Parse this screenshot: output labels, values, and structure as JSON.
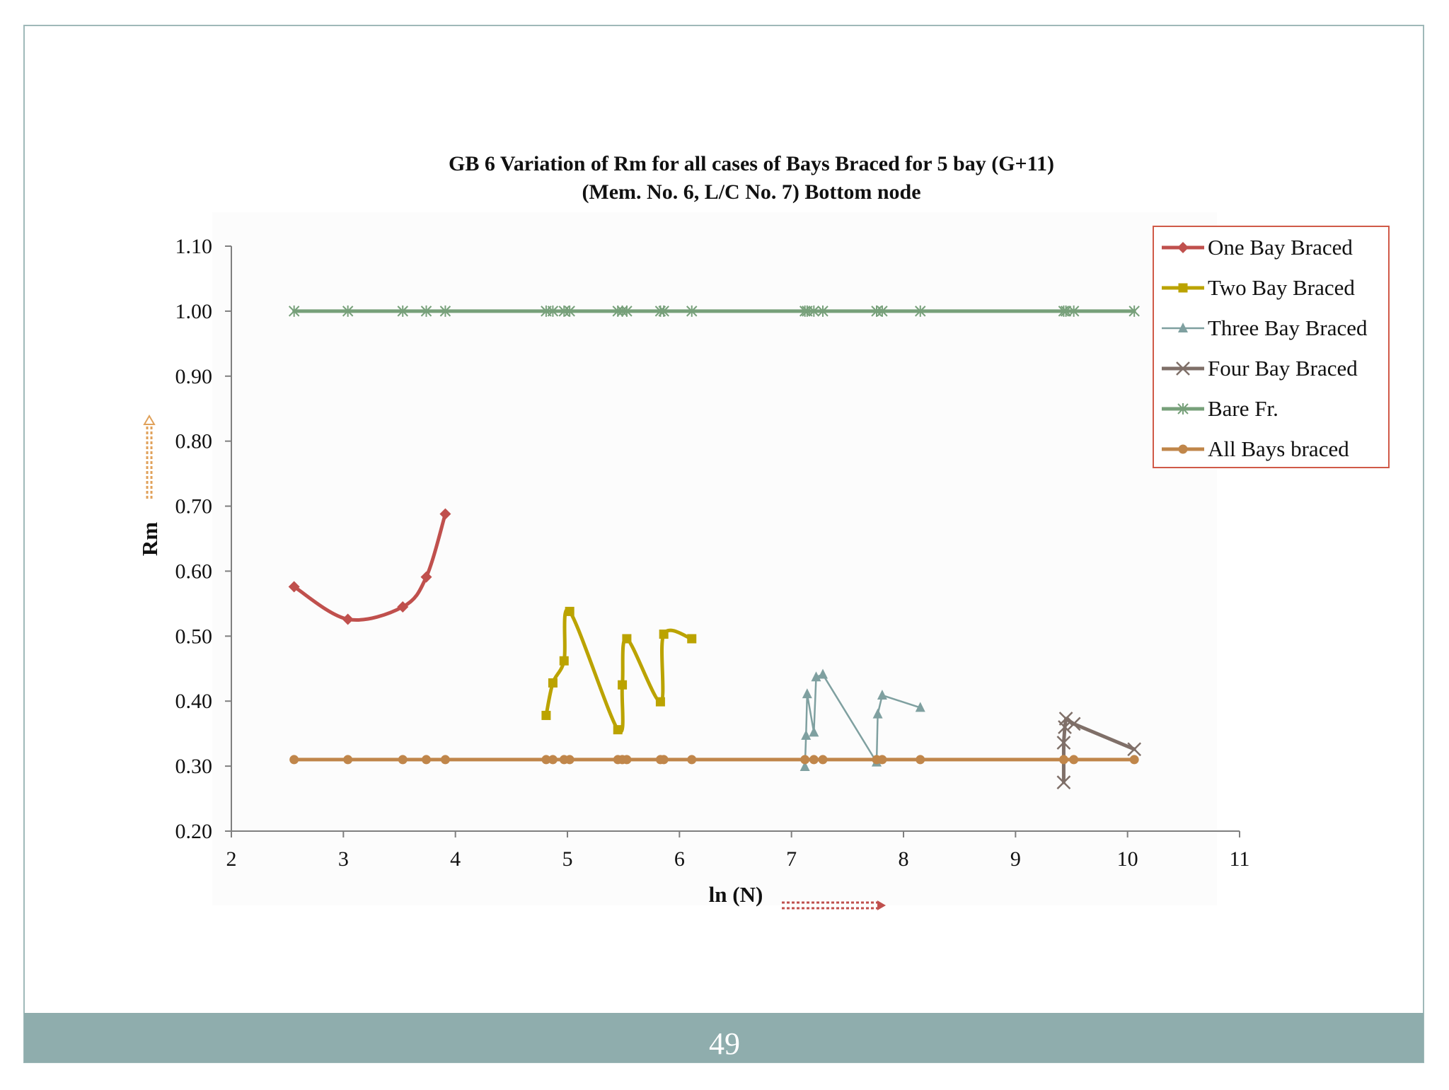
{
  "slide": {
    "page_number": "49"
  },
  "chart_data": {
    "type": "line",
    "title_lines": [
      "GB 6 Variation of Rm for all cases of Bays Braced for 5 bay  (G+11)",
      "(Mem. No. 6, L/C No. 7) Bottom node"
    ],
    "xlabel": "ln (N)",
    "ylabel": "Rm",
    "xlim": [
      2,
      11
    ],
    "ylim": [
      0.2,
      1.1
    ],
    "xticks": [
      2,
      3,
      4,
      5,
      6,
      7,
      8,
      9,
      10,
      11
    ],
    "yticks": [
      0.2,
      0.3,
      0.4,
      0.5,
      0.6,
      0.7,
      0.8,
      0.9,
      1.0,
      1.1
    ],
    "ytick_labels": [
      "0.20",
      "0.30",
      "0.40",
      "0.50",
      "0.60",
      "0.70",
      "0.80",
      "0.90",
      "1.00",
      "1.10"
    ],
    "legend_position": "top-right",
    "series": [
      {
        "name": "One Bay Braced",
        "color": "#C0504D",
        "marker": "diamond",
        "smooth": true,
        "points": [
          [
            2.56,
            0.576
          ],
          [
            3.04,
            0.526
          ],
          [
            3.53,
            0.545
          ],
          [
            3.74,
            0.591
          ],
          [
            3.91,
            0.688
          ]
        ]
      },
      {
        "name": "Two Bay Braced",
        "color": "#BBA300",
        "marker": "square",
        "smooth": true,
        "points": [
          [
            4.81,
            0.378
          ],
          [
            4.87,
            0.428
          ],
          [
            4.97,
            0.462
          ],
          [
            5.02,
            0.538
          ],
          [
            5.45,
            0.356
          ],
          [
            5.49,
            0.425
          ],
          [
            5.53,
            0.496
          ],
          [
            5.83,
            0.399
          ],
          [
            5.86,
            0.503
          ],
          [
            6.11,
            0.496
          ]
        ]
      },
      {
        "name": "Three Bay Braced",
        "color": "#7FA0A0",
        "marker": "triangle",
        "smooth": false,
        "points": [
          [
            7.12,
            0.299
          ],
          [
            7.13,
            0.347
          ],
          [
            7.14,
            0.411
          ],
          [
            7.2,
            0.352
          ],
          [
            7.22,
            0.437
          ],
          [
            7.28,
            0.441
          ],
          [
            7.76,
            0.306
          ],
          [
            7.77,
            0.38
          ],
          [
            7.81,
            0.409
          ],
          [
            8.15,
            0.39
          ]
        ]
      },
      {
        "name": "Four Bay Braced",
        "color": "#7F6F68",
        "marker": "x",
        "smooth": false,
        "points": [
          [
            9.43,
            0.275
          ],
          [
            9.43,
            0.336
          ],
          [
            9.44,
            0.36
          ],
          [
            9.45,
            0.373
          ],
          [
            9.52,
            0.365
          ],
          [
            10.06,
            0.326
          ]
        ]
      },
      {
        "name": "Bare Fr.",
        "color": "#77A07A",
        "marker": "asterisk",
        "smooth": false,
        "points": [
          [
            2.56,
            1.0
          ],
          [
            3.04,
            1.0
          ],
          [
            3.53,
            1.0
          ],
          [
            3.74,
            1.0
          ],
          [
            3.91,
            1.0
          ],
          [
            4.81,
            1.0
          ],
          [
            4.87,
            1.0
          ],
          [
            4.97,
            1.0
          ],
          [
            5.02,
            1.0
          ],
          [
            5.45,
            1.0
          ],
          [
            5.49,
            1.0
          ],
          [
            5.53,
            1.0
          ],
          [
            5.83,
            1.0
          ],
          [
            5.86,
            1.0
          ],
          [
            6.11,
            1.0
          ],
          [
            7.12,
            1.0
          ],
          [
            7.14,
            1.0
          ],
          [
            7.2,
            1.0
          ],
          [
            7.28,
            1.0
          ],
          [
            7.76,
            1.0
          ],
          [
            7.81,
            1.0
          ],
          [
            8.15,
            1.0
          ],
          [
            9.43,
            1.0
          ],
          [
            9.45,
            1.0
          ],
          [
            9.52,
            1.0
          ],
          [
            10.06,
            1.0
          ]
        ]
      },
      {
        "name": "All Bays braced",
        "color": "#C0864A",
        "marker": "circle",
        "smooth": false,
        "points": [
          [
            2.56,
            0.31
          ],
          [
            3.04,
            0.31
          ],
          [
            3.53,
            0.31
          ],
          [
            3.74,
            0.31
          ],
          [
            3.91,
            0.31
          ],
          [
            4.81,
            0.31
          ],
          [
            4.87,
            0.31
          ],
          [
            4.97,
            0.31
          ],
          [
            5.02,
            0.31
          ],
          [
            5.45,
            0.31
          ],
          [
            5.49,
            0.31
          ],
          [
            5.53,
            0.31
          ],
          [
            5.83,
            0.31
          ],
          [
            5.86,
            0.31
          ],
          [
            6.11,
            0.31
          ],
          [
            7.12,
            0.31
          ],
          [
            7.2,
            0.31
          ],
          [
            7.28,
            0.31
          ],
          [
            7.76,
            0.31
          ],
          [
            7.81,
            0.31
          ],
          [
            8.15,
            0.31
          ],
          [
            9.43,
            0.31
          ],
          [
            9.52,
            0.31
          ],
          [
            10.06,
            0.31
          ]
        ]
      }
    ]
  }
}
